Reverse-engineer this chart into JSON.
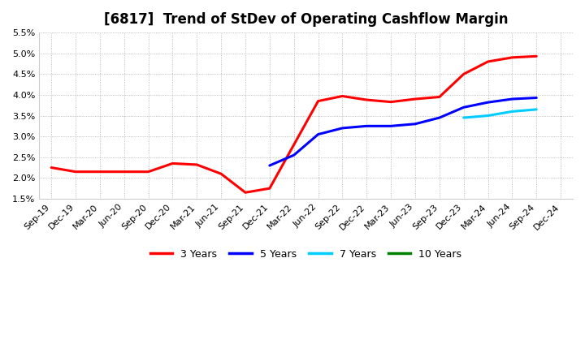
{
  "title": "[6817]  Trend of StDev of Operating Cashflow Margin",
  "ylim": [
    0.015,
    0.055
  ],
  "yticks": [
    0.015,
    0.02,
    0.025,
    0.03,
    0.035,
    0.04,
    0.045,
    0.05,
    0.055
  ],
  "background_color": "#ffffff",
  "plot_bg_color": "#ffffff",
  "grid_color": "#aaaaaa",
  "series": {
    "3 Years": {
      "color": "#ff0000",
      "dates": [
        "Sep-19",
        "Dec-19",
        "Mar-20",
        "Jun-20",
        "Sep-20",
        "Dec-20",
        "Mar-21",
        "Jun-21",
        "Sep-21",
        "Dec-21",
        "Mar-22",
        "Jun-22",
        "Sep-22",
        "Dec-22",
        "Mar-23",
        "Jun-23",
        "Sep-23",
        "Dec-23",
        "Mar-24",
        "Jun-24",
        "Sep-24"
      ],
      "values": [
        0.0225,
        0.0215,
        0.0215,
        0.0215,
        0.0215,
        0.0235,
        0.0232,
        0.021,
        0.0165,
        0.0175,
        0.028,
        0.0385,
        0.0397,
        0.0388,
        0.0383,
        0.039,
        0.0395,
        0.045,
        0.048,
        0.049,
        0.0493
      ]
    },
    "5 Years": {
      "color": "#0000ff",
      "dates": [
        "Dec-21",
        "Mar-22",
        "Jun-22",
        "Sep-22",
        "Dec-22",
        "Mar-23",
        "Jun-23",
        "Sep-23",
        "Dec-23",
        "Mar-24",
        "Jun-24",
        "Sep-24"
      ],
      "values": [
        0.023,
        0.0255,
        0.0305,
        0.032,
        0.0325,
        0.0325,
        0.033,
        0.0345,
        0.037,
        0.0382,
        0.039,
        0.0393
      ]
    },
    "7 Years": {
      "color": "#00ccff",
      "dates": [
        "Dec-23",
        "Mar-24",
        "Jun-24",
        "Sep-24"
      ],
      "values": [
        0.0345,
        0.035,
        0.036,
        0.0365
      ]
    },
    "10 Years": {
      "color": "#008000",
      "dates": [],
      "values": []
    }
  },
  "xtick_labels": [
    "Sep-19",
    "Dec-19",
    "Mar-20",
    "Jun-20",
    "Sep-20",
    "Dec-20",
    "Mar-21",
    "Jun-21",
    "Sep-21",
    "Dec-21",
    "Mar-22",
    "Jun-22",
    "Sep-22",
    "Dec-22",
    "Mar-23",
    "Jun-23",
    "Sep-23",
    "Dec-23",
    "Mar-24",
    "Jun-24",
    "Sep-24",
    "Dec-24"
  ],
  "legend_labels": [
    "3 Years",
    "5 Years",
    "7 Years",
    "10 Years"
  ],
  "legend_colors": [
    "#ff0000",
    "#0000ff",
    "#00ccff",
    "#008000"
  ],
  "title_fontsize": 12,
  "tick_label_fontsize": 8,
  "legend_fontsize": 9
}
